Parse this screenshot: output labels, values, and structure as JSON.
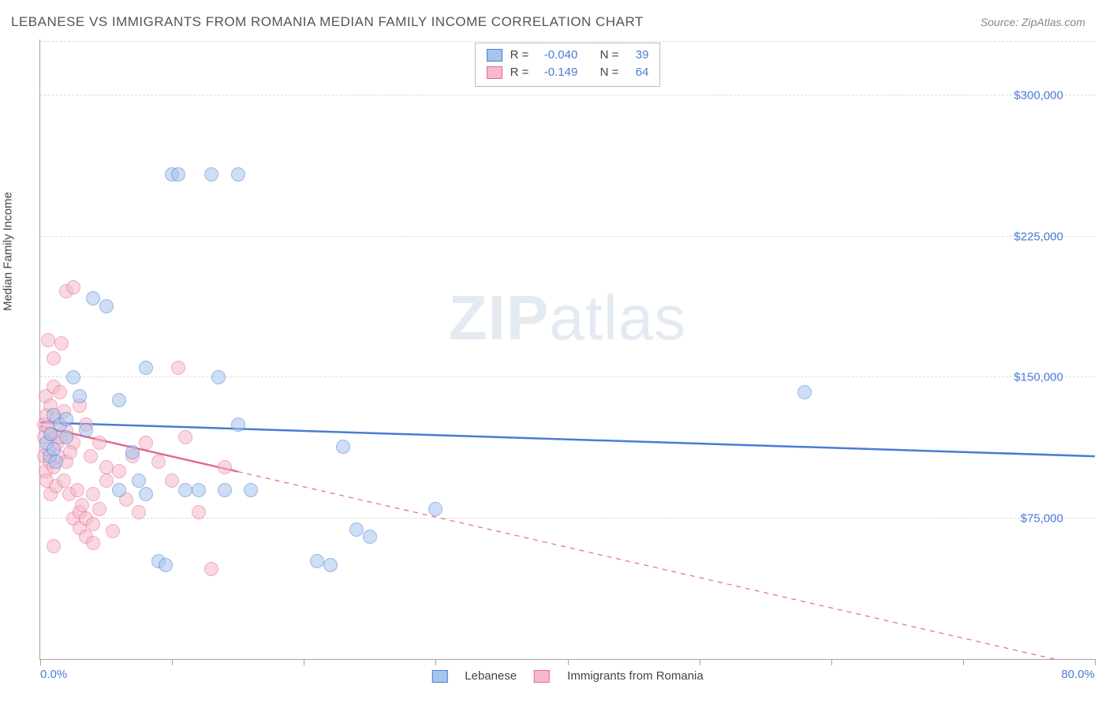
{
  "title": "LEBANESE VS IMMIGRANTS FROM ROMANIA MEDIAN FAMILY INCOME CORRELATION CHART",
  "source": "Source: ZipAtlas.com",
  "watermark": {
    "part1": "ZIP",
    "part2": "atlas"
  },
  "ylabel": "Median Family Income",
  "chart": {
    "type": "scatter",
    "background_color": "#ffffff",
    "grid_color": "#dcdcdc",
    "axis_color": "#a5a5a5",
    "xlim": [
      0,
      80
    ],
    "ylim": [
      0,
      330000
    ],
    "xtick_positions": [
      0,
      10,
      20,
      30,
      40,
      50,
      60,
      70,
      80
    ],
    "xtick_labels": {
      "first": "0.0%",
      "last": "80.0%"
    },
    "yticks": [
      {
        "value": 75000,
        "label": "$75,000"
      },
      {
        "value": 150000,
        "label": "$150,000"
      },
      {
        "value": 225000,
        "label": "$225,000"
      },
      {
        "value": 300000,
        "label": "$300,000"
      }
    ],
    "axis_label_color": "#4b7bd6",
    "dot_radius": 8,
    "dot_stroke_width": 1.5,
    "series": [
      {
        "id": "lebanese",
        "name": "Lebanese",
        "fill": "#a7c4ec",
        "stroke": "#4b7bd6",
        "fill_opacity": 0.55,
        "stats": {
          "R": "-0.040",
          "N": "39"
        },
        "trend": {
          "solid_from_x": 0,
          "solid_to_x": 80,
          "y_at_0": 126000,
          "y_at_80": 108000,
          "dashed": false
        },
        "points": [
          [
            0.5,
            115000
          ],
          [
            0.7,
            108000
          ],
          [
            0.8,
            120000
          ],
          [
            1.0,
            130000
          ],
          [
            1.0,
            112000
          ],
          [
            1.5,
            125000
          ],
          [
            2.0,
            118000
          ],
          [
            2.0,
            128000
          ],
          [
            2.5,
            150000
          ],
          [
            3.0,
            140000
          ],
          [
            3.5,
            122000
          ],
          [
            4.0,
            192000
          ],
          [
            5.0,
            188000
          ],
          [
            6.0,
            138000
          ],
          [
            6.0,
            90000
          ],
          [
            7.0,
            110000
          ],
          [
            7.5,
            95000
          ],
          [
            8.0,
            155000
          ],
          [
            8.0,
            88000
          ],
          [
            9.0,
            52000
          ],
          [
            9.5,
            50000
          ],
          [
            10.0,
            258000
          ],
          [
            10.5,
            258000
          ],
          [
            11.0,
            90000
          ],
          [
            12.0,
            90000
          ],
          [
            13.0,
            258000
          ],
          [
            13.5,
            150000
          ],
          [
            14.0,
            90000
          ],
          [
            15.0,
            258000
          ],
          [
            15.0,
            125000
          ],
          [
            16.0,
            90000
          ],
          [
            21.0,
            52000
          ],
          [
            22.0,
            50000
          ],
          [
            23.0,
            113000
          ],
          [
            24.0,
            69000
          ],
          [
            25.0,
            65000
          ],
          [
            30.0,
            80000
          ],
          [
            58.0,
            142000
          ],
          [
            1.2,
            105000
          ]
        ]
      },
      {
        "id": "romania",
        "name": "Immigrants from Romania",
        "fill": "#f6b9c9",
        "stroke": "#e26b8f",
        "fill_opacity": 0.55,
        "stats": {
          "R": "-0.149",
          "N": "64"
        },
        "trend": {
          "solid_from_x": 0,
          "solid_to_x": 15,
          "y_at_0": 124000,
          "y_at_80": -5000,
          "dashed": true
        },
        "points": [
          [
            0.3,
            118000
          ],
          [
            0.3,
            108000
          ],
          [
            0.3,
            125000
          ],
          [
            0.4,
            140000
          ],
          [
            0.4,
            100000
          ],
          [
            0.5,
            95000
          ],
          [
            0.5,
            130000
          ],
          [
            0.6,
            112000
          ],
          [
            0.6,
            170000
          ],
          [
            0.7,
            105000
          ],
          [
            0.8,
            135000
          ],
          [
            0.8,
            88000
          ],
          [
            0.9,
            120000
          ],
          [
            1.0,
            145000
          ],
          [
            1.0,
            160000
          ],
          [
            1.0,
            102000
          ],
          [
            1.2,
            128000
          ],
          [
            1.2,
            92000
          ],
          [
            1.3,
            115000
          ],
          [
            1.4,
            108000
          ],
          [
            1.5,
            142000
          ],
          [
            1.5,
            118000
          ],
          [
            1.6,
            168000
          ],
          [
            1.8,
            132000
          ],
          [
            1.8,
            95000
          ],
          [
            2.0,
            122000
          ],
          [
            2.0,
            105000
          ],
          [
            2.0,
            196000
          ],
          [
            2.2,
            88000
          ],
          [
            2.5,
            115000
          ],
          [
            2.5,
            75000
          ],
          [
            2.5,
            198000
          ],
          [
            2.8,
            90000
          ],
          [
            3.0,
            135000
          ],
          [
            3.0,
            78000
          ],
          [
            3.0,
            70000
          ],
          [
            3.2,
            82000
          ],
          [
            3.5,
            125000
          ],
          [
            3.5,
            65000
          ],
          [
            3.5,
            75000
          ],
          [
            3.8,
            108000
          ],
          [
            4.0,
            72000
          ],
          [
            4.0,
            88000
          ],
          [
            4.0,
            62000
          ],
          [
            4.5,
            115000
          ],
          [
            4.5,
            80000
          ],
          [
            5.0,
            95000
          ],
          [
            5.0,
            102000
          ],
          [
            5.5,
            68000
          ],
          [
            6.0,
            100000
          ],
          [
            6.5,
            85000
          ],
          [
            7.0,
            108000
          ],
          [
            7.5,
            78000
          ],
          [
            8.0,
            115000
          ],
          [
            9.0,
            105000
          ],
          [
            10.0,
            95000
          ],
          [
            10.5,
            155000
          ],
          [
            11.0,
            118000
          ],
          [
            12.0,
            78000
          ],
          [
            13.0,
            48000
          ],
          [
            14.0,
            102000
          ],
          [
            1.0,
            60000
          ],
          [
            0.6,
            123000
          ],
          [
            2.3,
            110000
          ]
        ]
      }
    ],
    "series_legend_labels": [
      "Lebanese",
      "Immigrants from Romania"
    ],
    "stats_legend": {
      "r_label": "R =",
      "n_label": "N ="
    }
  }
}
